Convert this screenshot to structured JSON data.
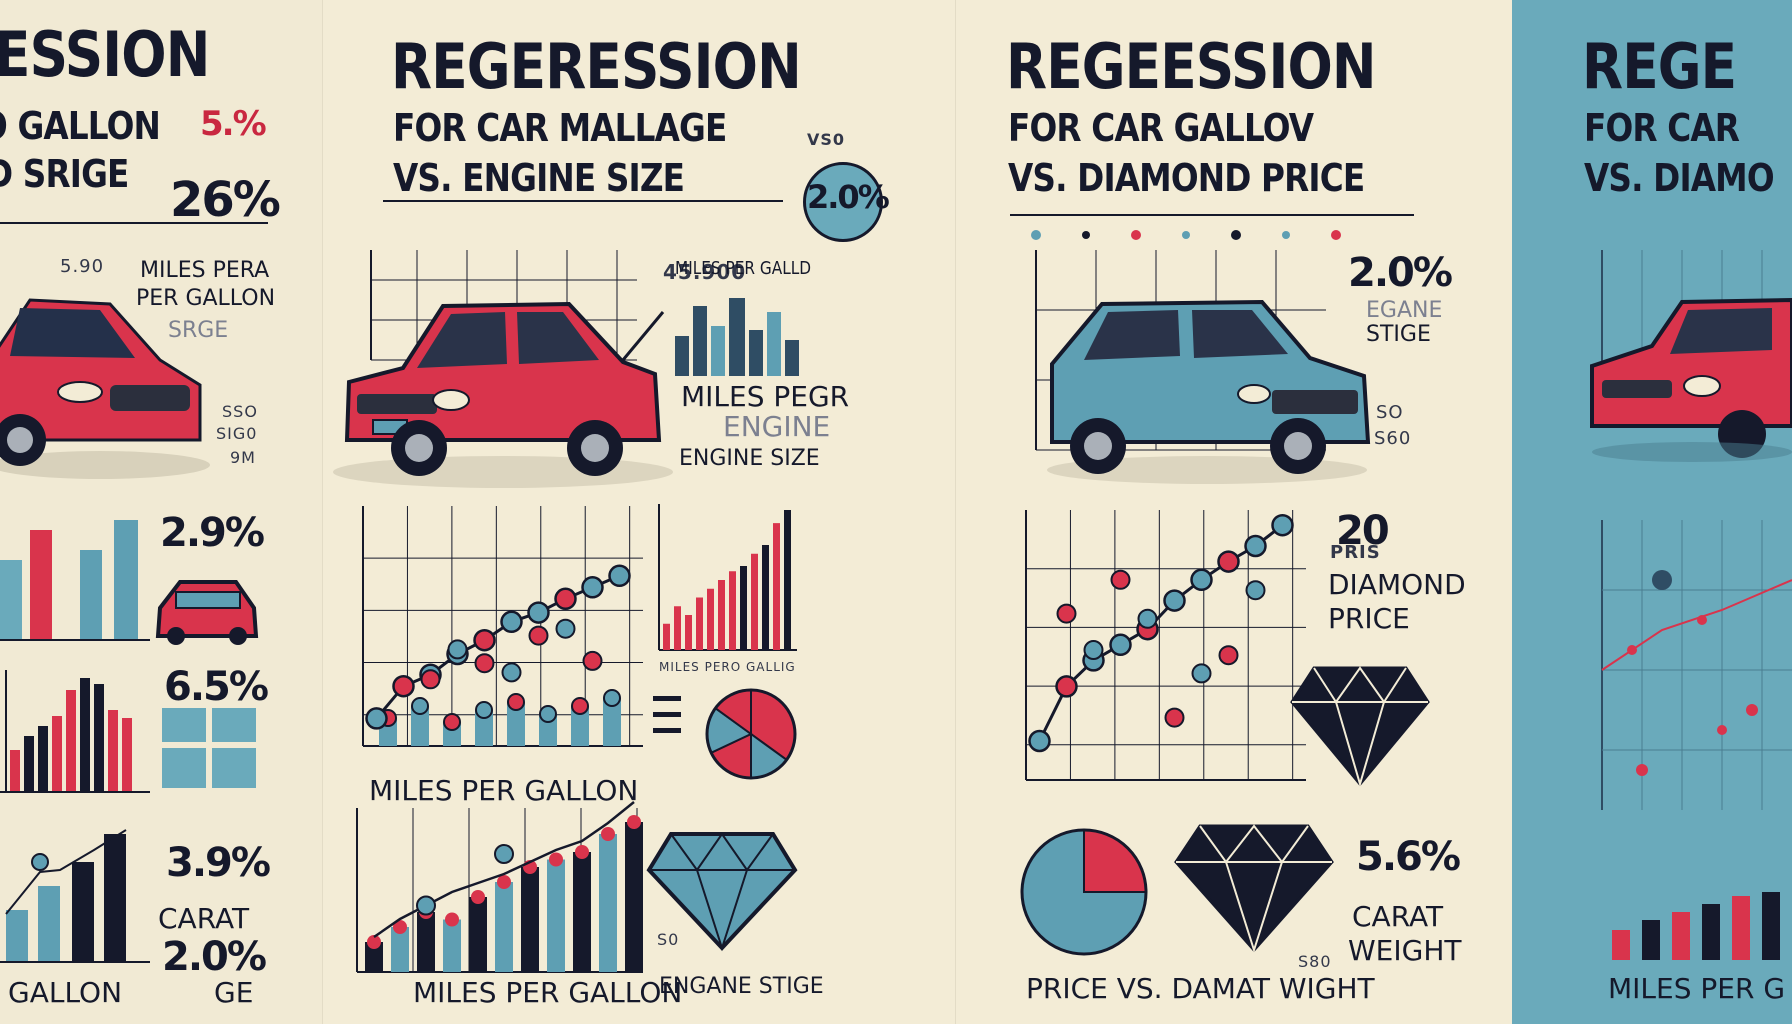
{
  "colors": {
    "background": "#f3ecd6",
    "ink": "#15192b",
    "red": "#d9344c",
    "blue": "#5e9fb3",
    "teal_panel": "#6aaabb"
  },
  "panel1": {
    "title": "ESSION",
    "sub1": "O GALLON",
    "sub2": "D SRIGE",
    "pct_a": "5.%",
    "pct_b": "26%",
    "small_a": "5.90",
    "label_a1": "MILES PERA",
    "label_a2": "PER GALLON",
    "label_b": "SRGE",
    "small_b1": "SSO",
    "small_b2": "SIG0",
    "small_b3": "9M",
    "pct_c": "2.9%",
    "pct_d": "6.5%",
    "pct_e": "3.9%",
    "label_carat": "CARAT",
    "pct_f": "2.0%",
    "label_ge": "GE",
    "label_gallon": "GALLON"
  },
  "panel2": {
    "title": "REGERESSION",
    "sub1": "FOR CAR MALLAGE",
    "sub2": "VS. ENGINE SIZE",
    "vs": "VS0",
    "badge": "2.0%",
    "small_red": "45.900",
    "label_mpg_small": "MILES PER GALLD",
    "label_mpg2": "MILES PEGR",
    "label_engine2": "ENGINE",
    "label_engine_size": "ENGINE SIZE",
    "label_chart_small": "MILES PERO GALLIG",
    "label_mpg_mid": "MILES PER GALLON",
    "label_mpg_bottom": "MILES PER GALLON",
    "label_engane": "ENGANE STIGE",
    "small_bottom": "S0"
  },
  "panel3": {
    "title": "REGEESSION",
    "sub1": "FOR CAR GALLOV",
    "sub2": "VS. DIAMOND PRICE",
    "pct_a": "2.0%",
    "label_egane": "EGANE",
    "label_stige": "STIGE",
    "small_a": "SO",
    "small_b": "S60",
    "pct_b": "20",
    "label_pris": "PRIS",
    "label_diamond": "DIAMOND",
    "label_price": "PRICE",
    "pct_c": "5.6%",
    "label_carat": "CARAT",
    "label_weight": "WEIGHT",
    "small_c": "S80",
    "label_bottom": "PRICE VS.  DAMAT WIGHT"
  },
  "panel4": {
    "title": "REGE",
    "sub1": "FOR CAR",
    "sub2": "VS. DIAMO",
    "label_bottom": "MILES PER G"
  },
  "chart_data": [
    {
      "type": "scatter",
      "panel": "panel2-mid",
      "title": "",
      "xlabel": "MILES PER GALLON",
      "ylabel": "",
      "series": [
        {
          "points": [
            [
              1,
              1.2
            ],
            [
              2,
              2.6
            ],
            [
              3,
              3.1
            ],
            [
              4,
              4.0
            ],
            [
              5,
              4.6
            ],
            [
              6,
              5.4
            ],
            [
              7,
              5.8
            ],
            [
              8,
              6.4
            ],
            [
              9,
              6.9
            ],
            [
              10,
              7.4
            ]
          ]
        },
        {
          "points": [
            [
              3,
              2.9
            ],
            [
              4,
              4.2
            ],
            [
              5,
              3.6
            ],
            [
              6,
              3.2
            ],
            [
              7,
              4.8
            ],
            [
              8,
              5.1
            ],
            [
              9,
              3.7
            ]
          ]
        }
      ],
      "bars": [
        0.7,
        1.0,
        0.6,
        0.9,
        1.1,
        0.8,
        1.0,
        1.2
      ],
      "grid": true
    },
    {
      "type": "bar",
      "panel": "panel2-right",
      "title": "",
      "xlabel": "MILES PERO GALLIG",
      "values": [
        3,
        5,
        4,
        6,
        7,
        8,
        9,
        9.6,
        11,
        12,
        14.5,
        16
      ]
    },
    {
      "type": "pie",
      "panel": "panel2-pie",
      "values": [
        35,
        15,
        18,
        17,
        15
      ]
    },
    {
      "type": "bar",
      "panel": "panel2-bottom",
      "title": "",
      "xlabel": "MILES PER GALLON",
      "values": [
        2,
        3,
        4,
        3.5,
        5,
        6,
        7,
        7.5,
        8,
        9.2,
        10
      ],
      "line": [
        1,
        2.2,
        3.1,
        4,
        4.6,
        5.2,
        6,
        6.8,
        7.4,
        8.6,
        10
      ]
    },
    {
      "type": "scatter",
      "panel": "panel3-mid",
      "title": "",
      "xlabel": "",
      "series": [
        {
          "points": [
            [
              1,
              1.5
            ],
            [
              2,
              3.6
            ],
            [
              3,
              4.6
            ],
            [
              4,
              5.2
            ],
            [
              5,
              5.8
            ],
            [
              6,
              6.9
            ],
            [
              7,
              7.7
            ],
            [
              8,
              8.4
            ],
            [
              9,
              9.0
            ],
            [
              10,
              9.8
            ]
          ]
        },
        {
          "points": [
            [
              2,
              6.4
            ],
            [
              3,
              5.0
            ],
            [
              4,
              7.7
            ],
            [
              5,
              6.2
            ],
            [
              6,
              2.4
            ],
            [
              7,
              4.1
            ],
            [
              8,
              4.8
            ],
            [
              9,
              7.3
            ]
          ]
        }
      ],
      "grid": true
    },
    {
      "type": "pie",
      "panel": "panel3-pie",
      "values": [
        25,
        75
      ]
    },
    {
      "type": "bar",
      "panel": "panel1-top",
      "values": [
        4,
        6,
        3,
        8,
        7
      ]
    },
    {
      "type": "bar",
      "panel": "panel1-mid",
      "values": [
        3,
        4,
        5,
        6,
        8,
        9,
        10,
        7,
        6
      ]
    }
  ]
}
